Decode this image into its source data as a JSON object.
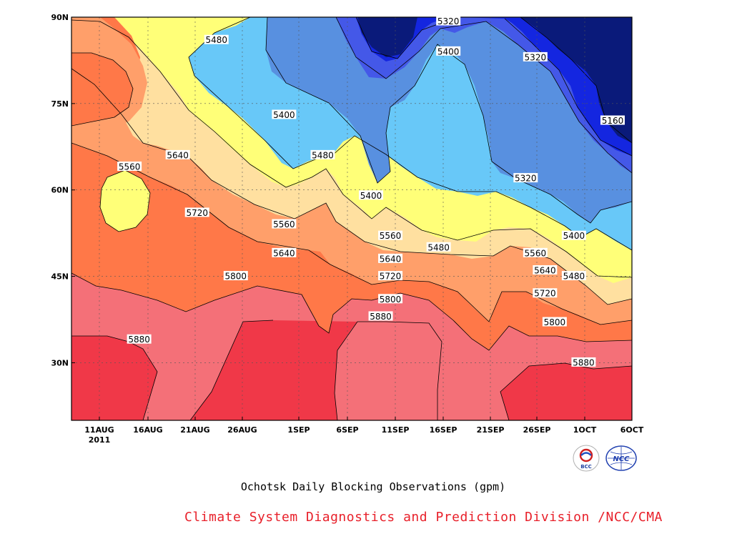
{
  "chart_data": {
    "type": "contour",
    "title": "Ochotsk Daily Blocking Observations (gpm)",
    "credit": "Climate System Diagnostics and Prediction Division /NCC/CMA",
    "x_tick_labels": [
      "11AUG",
      "16AUG",
      "21AUG",
      "26AUG",
      "1SEP",
      "6SEP",
      "11SEP",
      "16SEP",
      "21SEP",
      "26SEP",
      "1OCT",
      "6OCT"
    ],
    "x_year_label": "2011",
    "y_tick_labels": [
      "30N",
      "45N",
      "60N",
      "75N",
      "90N"
    ],
    "y_values": [
      30,
      45,
      60,
      75,
      90
    ],
    "xlim": [
      "2011-08-09",
      "2011-10-06"
    ],
    "ylim": [
      20,
      90
    ],
    "grid": true,
    "contour_levels": [
      5160,
      5240,
      5320,
      5400,
      5480,
      5560,
      5640,
      5720,
      5800,
      5880
    ],
    "fill_colors": {
      "below_5160": "#0a1a7a",
      "5160_5240": "#1426e0",
      "5240_5320": "#4458e8",
      "5320_5400": "#5890e0",
      "5400_5480": "#68c8f8",
      "5480_5560": "#ffff78",
      "5560_5640": "#ffe0a0",
      "5640_5720": "#ffa070",
      "5720_5800": "#ff7848",
      "5800_5880": "#f47078",
      "above_5880": "#f03848"
    },
    "contour_labels": [
      {
        "text": "5320",
        "date": "2011-09-17",
        "lat": 90
      },
      {
        "text": "5400",
        "date": "2011-09-17",
        "lat": 84
      },
      {
        "text": "5320",
        "date": "2011-09-26",
        "lat": 83
      },
      {
        "text": "5480",
        "date": "2011-08-24",
        "lat": 86
      },
      {
        "text": "5400",
        "date": "2011-08-31",
        "lat": 73
      },
      {
        "text": "5160",
        "date": "2011-10-04",
        "lat": 72
      },
      {
        "text": "5560",
        "date": "2011-08-15",
        "lat": 64
      },
      {
        "text": "5640",
        "date": "2011-08-20",
        "lat": 66
      },
      {
        "text": "5480",
        "date": "2011-09-04",
        "lat": 66
      },
      {
        "text": "5320",
        "date": "2011-09-25",
        "lat": 62
      },
      {
        "text": "5400",
        "date": "2011-09-09",
        "lat": 59
      },
      {
        "text": "5720",
        "date": "2011-08-22",
        "lat": 56
      },
      {
        "text": "5560",
        "date": "2011-08-31",
        "lat": 54
      },
      {
        "text": "5400",
        "date": "2011-09-30",
        "lat": 52
      },
      {
        "text": "5560",
        "date": "2011-09-11",
        "lat": 52
      },
      {
        "text": "5480",
        "date": "2011-09-16",
        "lat": 50
      },
      {
        "text": "5560",
        "date": "2011-09-26",
        "lat": 49
      },
      {
        "text": "5640",
        "date": "2011-08-31",
        "lat": 49
      },
      {
        "text": "5640",
        "date": "2011-09-11",
        "lat": 48
      },
      {
        "text": "5640",
        "date": "2011-09-27",
        "lat": 46
      },
      {
        "text": "5720",
        "date": "2011-09-11",
        "lat": 45
      },
      {
        "text": "5480",
        "date": "2011-09-30",
        "lat": 45
      },
      {
        "text": "5800",
        "date": "2011-08-26",
        "lat": 45
      },
      {
        "text": "5720",
        "date": "2011-09-27",
        "lat": 42
      },
      {
        "text": "5800",
        "date": "2011-09-11",
        "lat": 41
      },
      {
        "text": "5880",
        "date": "2011-09-10",
        "lat": 38
      },
      {
        "text": "5800",
        "date": "2011-09-28",
        "lat": 37
      },
      {
        "text": "5880",
        "date": "2011-08-16",
        "lat": 34
      },
      {
        "text": "5880",
        "date": "2011-10-01",
        "lat": 30
      }
    ]
  },
  "logos": [
    {
      "name": "bcc-logo",
      "text": "BCC"
    },
    {
      "name": "ncc-logo",
      "text": "NCC"
    }
  ]
}
